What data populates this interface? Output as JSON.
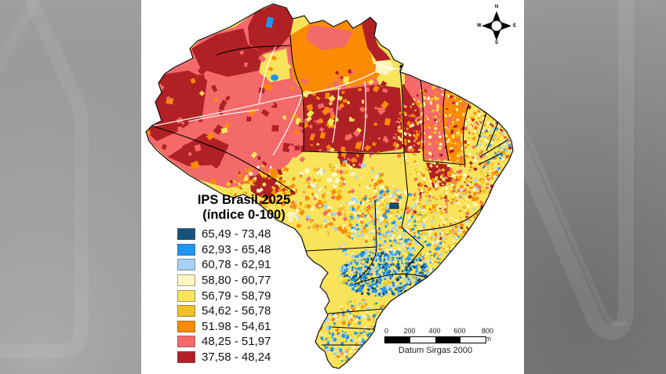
{
  "legend": {
    "title_line1": "IPS Brasil 2025",
    "title_line2": "(índice 0-100)",
    "classes": [
      {
        "range": "65,49 - 73,48",
        "color": "#16537c"
      },
      {
        "range": "62,93 - 65,48",
        "color": "#1e95f0"
      },
      {
        "range": "60,78 - 62,91",
        "color": "#a8d2f4"
      },
      {
        "range": "58,80 - 60,77",
        "color": "#fdf6c1"
      },
      {
        "range": "56,79 - 58,79",
        "color": "#f8e35a"
      },
      {
        "range": "54,62 - 56,78",
        "color": "#f0c223"
      },
      {
        "range": "51.98 - 54,61",
        "color": "#fb8b04"
      },
      {
        "range": "48,25 - 51,97",
        "color": "#f4696a"
      },
      {
        "range": "37,58 - 48,24",
        "color": "#b12025"
      }
    ]
  },
  "scale_bar": {
    "tick_labels": [
      "0",
      "200",
      "400",
      "600",
      "800 km"
    ],
    "datum_label": "Datum Sirgas 2000"
  },
  "compass": {
    "north": "N",
    "east": "E",
    "south": "S",
    "west": "W"
  }
}
